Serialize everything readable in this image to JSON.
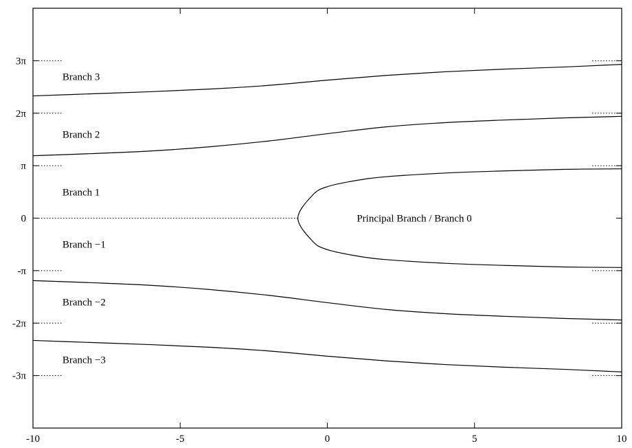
{
  "chart_data": {
    "type": "line",
    "title": "",
    "xlabel": "",
    "ylabel": "",
    "xlim": [
      -10,
      10
    ],
    "ylim_pi": [
      -4,
      4
    ],
    "grid": false,
    "x_ticks": [
      {
        "value": -10,
        "label": "-10"
      },
      {
        "value": -5,
        "label": "-5"
      },
      {
        "value": 0,
        "label": "0"
      },
      {
        "value": 5,
        "label": "5"
      },
      {
        "value": 10,
        "label": "10"
      }
    ],
    "y_ticks": [
      {
        "value_pi": 3,
        "label": "3π"
      },
      {
        "value_pi": 2,
        "label": "2π"
      },
      {
        "value_pi": 1,
        "label": "π"
      },
      {
        "value_pi": 0,
        "label": "0"
      },
      {
        "value_pi": -1,
        "label": "-π"
      },
      {
        "value_pi": -2,
        "label": "-2π"
      },
      {
        "value_pi": -3,
        "label": "-3π"
      }
    ],
    "series": [
      {
        "x": [
          -10,
          -8,
          -6,
          -4,
          -2,
          0,
          2,
          4,
          6,
          8,
          10
        ],
        "y_pi": [
          2.33,
          2.37,
          2.41,
          2.46,
          2.53,
          2.63,
          2.72,
          2.79,
          2.84,
          2.88,
          2.93
        ]
      },
      {
        "x": [
          -10,
          -8,
          -6,
          -4,
          -2,
          0,
          2,
          4,
          6,
          8,
          10
        ],
        "y_pi": [
          1.19,
          1.23,
          1.28,
          1.36,
          1.47,
          1.61,
          1.74,
          1.82,
          1.87,
          1.91,
          1.94
        ]
      },
      {
        "x": [
          10,
          8,
          6,
          4,
          2,
          1,
          0,
          -0.5,
          -1,
          -0.5,
          0,
          1,
          2,
          4,
          6,
          8,
          10
        ],
        "y_pi": [
          0.94,
          0.93,
          0.9,
          0.86,
          0.79,
          0.72,
          0.6,
          0.44,
          0,
          -0.44,
          -0.6,
          -0.72,
          -0.79,
          -0.86,
          -0.9,
          -0.93,
          -0.94
        ]
      },
      {
        "x": [
          -10,
          -8,
          -6,
          -4,
          -2,
          0,
          2,
          4,
          6,
          8,
          10
        ],
        "y_pi": [
          -1.19,
          -1.23,
          -1.28,
          -1.36,
          -1.47,
          -1.61,
          -1.74,
          -1.82,
          -1.87,
          -1.91,
          -1.94
        ]
      },
      {
        "x": [
          -10,
          -8,
          -6,
          -4,
          -2,
          0,
          2,
          4,
          6,
          8,
          10
        ],
        "y_pi": [
          -2.33,
          -2.37,
          -2.41,
          -2.46,
          -2.53,
          -2.63,
          -2.72,
          -2.79,
          -2.84,
          -2.88,
          -2.93
        ]
      }
    ],
    "annotations": [
      {
        "text": "Branch 3",
        "x": -9,
        "y_pi": 2.7
      },
      {
        "text": "Branch 2",
        "x": -9,
        "y_pi": 1.6
      },
      {
        "text": "Branch 1",
        "x": -9,
        "y_pi": 0.5
      },
      {
        "text": "Branch −1",
        "x": -9,
        "y_pi": -0.5
      },
      {
        "text": "Branch −2",
        "x": -9,
        "y_pi": -1.6
      },
      {
        "text": "Branch −3",
        "x": -9,
        "y_pi": -2.7
      },
      {
        "text": "Principal Branch / Branch 0",
        "x": 1,
        "y_pi": 0
      }
    ],
    "guide_lines": [
      {
        "y_pi": 3,
        "x_from": -10,
        "x_to": -9
      },
      {
        "y_pi": 3,
        "x_from": 9,
        "x_to": 10
      },
      {
        "y_pi": 2,
        "x_from": -10,
        "x_to": -9
      },
      {
        "y_pi": 2,
        "x_from": 9,
        "x_to": 10
      },
      {
        "y_pi": 1,
        "x_from": -10,
        "x_to": -9
      },
      {
        "y_pi": 1,
        "x_from": 9,
        "x_to": 10
      },
      {
        "y_pi": 0,
        "x_from": -10,
        "x_to": -1
      },
      {
        "y_pi": -1,
        "x_from": -10,
        "x_to": -9
      },
      {
        "y_pi": -1,
        "x_from": 9,
        "x_to": 10
      },
      {
        "y_pi": -2,
        "x_from": -10,
        "x_to": -9
      },
      {
        "y_pi": -2,
        "x_from": 9,
        "x_to": 10
      },
      {
        "y_pi": -3,
        "x_from": -10,
        "x_to": -9
      },
      {
        "y_pi": -3,
        "x_from": 9,
        "x_to": 10
      }
    ]
  }
}
